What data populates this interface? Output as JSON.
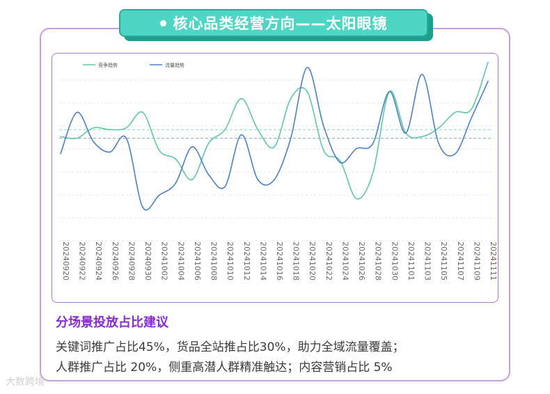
{
  "header": {
    "title": "核心品类经营方向——太阳眼镜"
  },
  "chart_data": {
    "type": "line",
    "title": "",
    "xlabel": "",
    "ylabel": "",
    "ylim": [
      0,
      100
    ],
    "grid": true,
    "legend_position": "top-left",
    "categories": [
      "20240920",
      "20240922",
      "20240924",
      "20240926",
      "20240928",
      "20240930",
      "20241002",
      "20241004",
      "20241006",
      "20241008",
      "20241010",
      "20241012",
      "20241014",
      "20241016",
      "20241018",
      "20241020",
      "20241022",
      "20241024",
      "20241026",
      "20241028",
      "20241030",
      "20241101",
      "20241103",
      "20241105",
      "20241107",
      "20241109",
      "20241111"
    ],
    "series": [
      {
        "name": "竞争趋势",
        "color": "#5cc9a0",
        "values": [
          56,
          55,
          61,
          60,
          61,
          70,
          48,
          43,
          31,
          52,
          60,
          78,
          60,
          50,
          78,
          82,
          48,
          42,
          20,
          35,
          82,
          58,
          56,
          61,
          70,
          72,
          99
        ]
      },
      {
        "name": "流量趋势",
        "color": "#4a80c8",
        "values": [
          46,
          70,
          53,
          47,
          55,
          15,
          22,
          29,
          50,
          34,
          27,
          57,
          31,
          31,
          55,
          96,
          62,
          41,
          49,
          52,
          82,
          58,
          92,
          52,
          46,
          67,
          88
        ]
      }
    ],
    "reference_lines": [
      {
        "series": "竞争趋势",
        "value": 60,
        "color": "#8fd9bd"
      },
      {
        "series": "流量趋势",
        "value": 55,
        "color": "#7fa6dc"
      }
    ]
  },
  "section": {
    "heading": "分场景投放占比建议",
    "line1": "关键词推广占比45%，货品全站推占比30%，助力全域流量覆盖；",
    "line2": "人群推广占比 20%，侧重高潜人群精准触达；内容营销占比 5%"
  },
  "watermark": "大数跨境"
}
